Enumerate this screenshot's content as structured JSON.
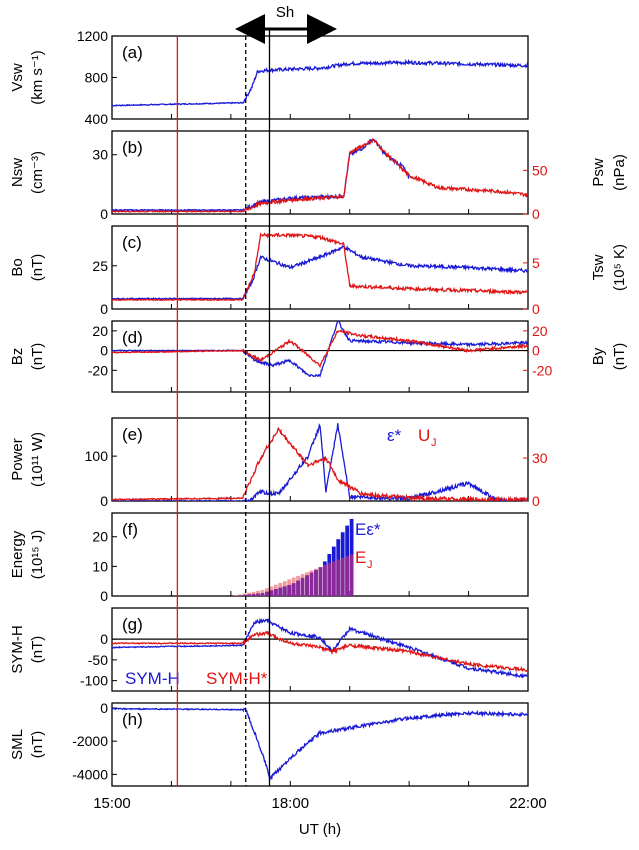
{
  "colors": {
    "blue": "#1a1ad6",
    "red": "#e01414",
    "pink": "#f08a8a",
    "purple": "#8a2a9a",
    "axis": "#000000"
  },
  "header": {
    "sheath_label": "Sh"
  },
  "xaxis": {
    "title": "UT (h)",
    "tick_labels": [
      "15:00",
      "18:00",
      "22:00"
    ],
    "tick_values": [
      15,
      18,
      22
    ],
    "range": [
      15,
      22
    ]
  },
  "markers": {
    "red_line_ut": 16.1,
    "dashed_line_ut": 17.25,
    "solid_line_ut": 17.65,
    "sheath_start_ut": 17.25,
    "sheath_end_ut": 19.0
  },
  "panels": [
    {
      "id": "a",
      "tag": "(a)",
      "ylabel1": "Vsw",
      "ylabel2": "(km s⁻¹)",
      "yticks": [
        "1200",
        "800",
        "400"
      ],
      "ytick_values": [
        1200,
        800,
        400
      ],
      "ylim": [
        400,
        1200
      ]
    },
    {
      "id": "b",
      "tag": "(b)",
      "ylabel1": "Nsw",
      "ylabel2": "(cm⁻³)",
      "yticks": [
        "30",
        "0"
      ],
      "ytick_values": [
        30,
        0
      ],
      "ylim": [
        0,
        42
      ],
      "rlabel1": "Psw",
      "rlabel2": "(nPa)",
      "rticks": [
        "50",
        "0"
      ],
      "rtick_values": [
        50,
        0
      ],
      "rlim": [
        0,
        95
      ]
    },
    {
      "id": "c",
      "tag": "(c)",
      "ylabel1": "Bo",
      "ylabel2": "(nT)",
      "yticks": [
        "25",
        "0"
      ],
      "ytick_values": [
        25,
        0
      ],
      "ylim": [
        0,
        48
      ],
      "rlabel1": "Tsw",
      "rlabel2": "(10⁵ K)",
      "rticks": [
        "5",
        "0"
      ],
      "rtick_values": [
        5,
        0
      ],
      "rlim": [
        0,
        9
      ]
    },
    {
      "id": "d",
      "tag": "(d)",
      "ylabel1": "Bz",
      "ylabel2": "(nT)",
      "yticks": [
        "20",
        "0",
        "-20"
      ],
      "ytick_values": [
        20,
        0,
        -20
      ],
      "ylim": [
        -42,
        30
      ],
      "rlabel1": "By",
      "rlabel2": "(nT)",
      "rticks": [
        "20",
        "0",
        "-20"
      ],
      "rtick_values": [
        20,
        0,
        -20
      ],
      "rlim": [
        -42,
        30
      ]
    },
    {
      "id": "e",
      "tag": "(e)",
      "ylabel1": "Power",
      "ylabel2": "(10¹¹ W)",
      "yticks": [
        "100",
        "0"
      ],
      "ytick_values": [
        100,
        0
      ],
      "ylim": [
        0,
        185
      ],
      "rticks": [
        "30",
        "0"
      ],
      "rtick_values": [
        30,
        0
      ],
      "rlim": [
        0,
        58
      ],
      "legend_eps": "ε*",
      "legend_u": "U",
      "legend_u_sub": "J"
    },
    {
      "id": "f",
      "tag": "(f)",
      "ylabel1": "Energy",
      "ylabel2": "(10¹⁵ J)",
      "yticks": [
        "20",
        "10",
        "0"
      ],
      "ytick_values": [
        20,
        10,
        0
      ],
      "ylim": [
        0,
        28
      ],
      "legend_e": "Eε*",
      "legend_ej": "E",
      "legend_ej_sub": "J"
    },
    {
      "id": "g",
      "tag": "(g)",
      "ylabel1": "SYM-H",
      "ylabel2": "(nT)",
      "yticks": [
        "0",
        "-50",
        "-100"
      ],
      "ytick_values": [
        0,
        -50,
        -100
      ],
      "ylim": [
        -125,
        75
      ],
      "legend_symh": "SYM-H",
      "legend_symhstar": "SYM-H*"
    },
    {
      "id": "h",
      "tag": "(h)",
      "ylabel1": "SML",
      "ylabel2": "(nT)",
      "yticks": [
        "0",
        "-2000",
        "-4000"
      ],
      "ytick_values": [
        0,
        -2000,
        -4000
      ],
      "ylim": [
        -4700,
        300
      ]
    }
  ],
  "chart_data": {
    "type": "line",
    "x_unit": "UT hours",
    "series": [
      {
        "panel": "a",
        "name": "Vsw",
        "color": "#1a1ad6",
        "points": [
          [
            15.0,
            530
          ],
          [
            16.5,
            548
          ],
          [
            17.2,
            556
          ],
          [
            17.35,
            700
          ],
          [
            17.45,
            860
          ],
          [
            17.6,
            870
          ],
          [
            18.0,
            880
          ],
          [
            18.5,
            890
          ],
          [
            19.0,
            935
          ],
          [
            20.0,
            945
          ],
          [
            21.0,
            930
          ],
          [
            22.0,
            915
          ]
        ]
      },
      {
        "panel": "b",
        "name": "Nsw",
        "color": "#1a1ad6",
        "points": [
          [
            15.0,
            2
          ],
          [
            17.2,
            2
          ],
          [
            17.5,
            6
          ],
          [
            18.0,
            8
          ],
          [
            18.9,
            9
          ],
          [
            19.0,
            30
          ],
          [
            19.2,
            33
          ],
          [
            19.4,
            38
          ],
          [
            19.6,
            30
          ],
          [
            19.9,
            24
          ],
          [
            20.0,
            18
          ]
        ]
      },
      {
        "panel": "b",
        "name": "Psw",
        "color": "#e01414",
        "axis": "right",
        "points": [
          [
            15.0,
            3
          ],
          [
            17.2,
            3
          ],
          [
            17.5,
            12
          ],
          [
            18.0,
            16
          ],
          [
            18.9,
            20
          ],
          [
            19.0,
            70
          ],
          [
            19.4,
            85
          ],
          [
            19.6,
            70
          ],
          [
            20.0,
            44
          ],
          [
            20.5,
            30
          ],
          [
            21.0,
            28
          ],
          [
            21.5,
            26
          ],
          [
            22.0,
            22
          ]
        ]
      },
      {
        "panel": "c",
        "name": "Bo",
        "color": "#1a1ad6",
        "points": [
          [
            15.0,
            6
          ],
          [
            17.2,
            6
          ],
          [
            17.35,
            15
          ],
          [
            17.5,
            30
          ],
          [
            18.0,
            24
          ],
          [
            18.5,
            30
          ],
          [
            18.9,
            36
          ],
          [
            19.2,
            30
          ],
          [
            20.0,
            25
          ],
          [
            21.0,
            24
          ],
          [
            22.0,
            22
          ]
        ]
      },
      {
        "panel": "c",
        "name": "Tsw",
        "color": "#e01414",
        "axis": "right",
        "points": [
          [
            15.0,
            1
          ],
          [
            17.2,
            1
          ],
          [
            17.4,
            4
          ],
          [
            17.5,
            8
          ],
          [
            18.0,
            8
          ],
          [
            18.5,
            7.8
          ],
          [
            18.9,
            7
          ],
          [
            19.0,
            2.5
          ],
          [
            20.0,
            2.2
          ],
          [
            21.0,
            2
          ],
          [
            22.0,
            1.8
          ]
        ]
      },
      {
        "panel": "d",
        "name": "Bz",
        "color": "#1a1ad6",
        "points": [
          [
            15.0,
            0
          ],
          [
            17.2,
            0
          ],
          [
            17.4,
            -10
          ],
          [
            17.7,
            -15
          ],
          [
            18.0,
            -10
          ],
          [
            18.3,
            -25
          ],
          [
            18.5,
            -25
          ],
          [
            18.8,
            30
          ],
          [
            19.0,
            10
          ],
          [
            20.0,
            8
          ],
          [
            21.0,
            6
          ],
          [
            22.0,
            8
          ]
        ]
      },
      {
        "panel": "d",
        "name": "By",
        "color": "#e01414",
        "axis": "right",
        "points": [
          [
            15.0,
            -2
          ],
          [
            17.2,
            0
          ],
          [
            17.5,
            -10
          ],
          [
            18.0,
            10
          ],
          [
            18.5,
            -15
          ],
          [
            18.8,
            20
          ],
          [
            19.2,
            15
          ],
          [
            20.0,
            10
          ],
          [
            21.0,
            0
          ],
          [
            22.0,
            5
          ]
        ]
      },
      {
        "panel": "e",
        "name": "ε*",
        "color": "#1a1ad6",
        "points": [
          [
            15.0,
            0
          ],
          [
            17.3,
            0
          ],
          [
            17.5,
            20
          ],
          [
            17.8,
            15
          ],
          [
            18.3,
            100
          ],
          [
            18.5,
            170
          ],
          [
            18.6,
            20
          ],
          [
            18.8,
            170
          ],
          [
            19.0,
            10
          ],
          [
            20.0,
            5
          ],
          [
            21.0,
            40
          ],
          [
            21.5,
            0
          ],
          [
            22.0,
            0
          ]
        ]
      },
      {
        "panel": "e",
        "name": "U_J",
        "color": "#e01414",
        "axis": "right",
        "points": [
          [
            15.0,
            1
          ],
          [
            17.2,
            2
          ],
          [
            17.5,
            30
          ],
          [
            17.8,
            50
          ],
          [
            18.0,
            40
          ],
          [
            18.3,
            25
          ],
          [
            18.6,
            30
          ],
          [
            18.8,
            15
          ],
          [
            19.2,
            5
          ],
          [
            20.0,
            2
          ],
          [
            21.0,
            1
          ],
          [
            22.0,
            1
          ]
        ]
      },
      {
        "panel": "f",
        "name": "Eε*",
        "color": "#1a1ad6",
        "points": [
          [
            15.0,
            0
          ],
          [
            17.0,
            0
          ],
          [
            17.5,
            1
          ],
          [
            18.0,
            4
          ],
          [
            18.5,
            10
          ],
          [
            18.8,
            20
          ],
          [
            19.0,
            26
          ]
        ]
      },
      {
        "panel": "f",
        "name": "E_J",
        "color": "#e01414",
        "points": [
          [
            15.0,
            0
          ],
          [
            17.0,
            0
          ],
          [
            17.5,
            2
          ],
          [
            18.0,
            6
          ],
          [
            18.5,
            10
          ],
          [
            19.0,
            14
          ]
        ]
      },
      {
        "panel": "g",
        "name": "SYM-H",
        "color": "#1a1ad6",
        "points": [
          [
            15.0,
            -20
          ],
          [
            17.2,
            -15
          ],
          [
            17.4,
            40
          ],
          [
            17.6,
            45
          ],
          [
            18.0,
            15
          ],
          [
            18.5,
            5
          ],
          [
            18.7,
            -30
          ],
          [
            19.0,
            25
          ],
          [
            20.0,
            -20
          ],
          [
            21.0,
            -70
          ],
          [
            22.0,
            -90
          ]
        ]
      },
      {
        "panel": "g",
        "name": "SYM-H*",
        "color": "#e01414",
        "points": [
          [
            15.0,
            -10
          ],
          [
            17.2,
            -10
          ],
          [
            17.4,
            10
          ],
          [
            17.6,
            15
          ],
          [
            18.0,
            -10
          ],
          [
            18.5,
            -20
          ],
          [
            18.7,
            -30
          ],
          [
            19.0,
            -15
          ],
          [
            20.0,
            -30
          ],
          [
            21.0,
            -60
          ],
          [
            22.0,
            -75
          ]
        ]
      },
      {
        "panel": "h",
        "name": "SML",
        "color": "#1a1ad6",
        "points": [
          [
            15.0,
            -50
          ],
          [
            17.25,
            -100
          ],
          [
            17.4,
            -1500
          ],
          [
            17.6,
            -3500
          ],
          [
            17.65,
            -4300
          ],
          [
            18.0,
            -3000
          ],
          [
            18.5,
            -1500
          ],
          [
            19.0,
            -1200
          ],
          [
            20.0,
            -600
          ],
          [
            21.0,
            -300
          ],
          [
            22.0,
            -400
          ]
        ]
      }
    ]
  }
}
